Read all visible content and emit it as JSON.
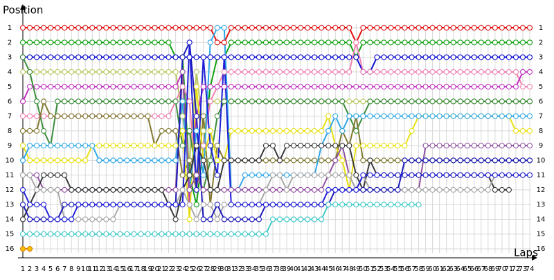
{
  "chart_data": {
    "type": "line",
    "y_label": "Position",
    "x_label": "Laps",
    "x": [
      1,
      2,
      3,
      4,
      5,
      6,
      7,
      8,
      9,
      10,
      11,
      12,
      13,
      14,
      15,
      16,
      17,
      18,
      19,
      20,
      21,
      22,
      23,
      24,
      25,
      26,
      27,
      28,
      29,
      30,
      31,
      32,
      33,
      34,
      35,
      36,
      37,
      38,
      39,
      40,
      41,
      42,
      43,
      44,
      45,
      46,
      47,
      48,
      49,
      50,
      51,
      52,
      53,
      54,
      55,
      56,
      57,
      58,
      59,
      60,
      61,
      62,
      63,
      64,
      65,
      66,
      67,
      68,
      69,
      70,
      71,
      72,
      73,
      74
    ],
    "xlim": [
      1,
      74
    ],
    "ylim": [
      1,
      16
    ],
    "y_inverted": true,
    "yticks": [
      1,
      2,
      3,
      4,
      5,
      6,
      7,
      8,
      9,
      10,
      11,
      12,
      13,
      14,
      15,
      16
    ],
    "grid": true,
    "series": [
      {
        "color": "#e01010",
        "values": [
          1,
          1,
          1,
          1,
          1,
          1,
          1,
          1,
          1,
          1,
          1,
          1,
          1,
          1,
          1,
          1,
          1,
          1,
          1,
          1,
          1,
          1,
          1,
          1,
          1,
          1,
          1,
          1,
          2,
          2,
          1,
          1,
          1,
          1,
          1,
          1,
          1,
          1,
          1,
          1,
          1,
          1,
          1,
          1,
          1,
          1,
          1,
          1,
          2,
          1,
          1,
          1,
          1,
          1,
          1,
          1,
          1,
          1,
          1,
          1,
          1,
          1,
          1,
          1,
          1,
          1,
          1,
          1,
          1,
          1,
          1,
          1,
          1,
          1
        ]
      },
      {
        "color": "#10a010",
        "values": [
          2,
          2,
          2,
          2,
          2,
          2,
          2,
          2,
          2,
          2,
          2,
          2,
          2,
          2,
          2,
          2,
          2,
          2,
          2,
          2,
          2,
          2,
          3,
          3,
          11,
          13,
          9,
          5,
          3,
          3,
          2,
          2,
          2,
          2,
          2,
          2,
          2,
          2,
          2,
          2,
          2,
          2,
          2,
          2,
          2,
          2,
          2,
          2,
          3,
          2,
          2,
          2,
          2,
          2,
          2,
          2,
          2,
          2,
          2,
          2,
          2,
          2,
          2,
          2,
          2,
          2,
          2,
          2,
          2,
          2,
          2,
          2,
          2,
          2
        ]
      },
      {
        "color": "#0a0ad0",
        "values": [
          3,
          3,
          3,
          3,
          3,
          3,
          3,
          3,
          3,
          3,
          3,
          3,
          3,
          3,
          3,
          3,
          3,
          3,
          3,
          3,
          3,
          3,
          3,
          3,
          3,
          3,
          3,
          3,
          3,
          3,
          3,
          3,
          3,
          3,
          3,
          3,
          3,
          3,
          3,
          3,
          3,
          3,
          3,
          3,
          3,
          3,
          3,
          3,
          3,
          4,
          4,
          3,
          3,
          3,
          3,
          3,
          3,
          3,
          3,
          3,
          3,
          3,
          3,
          3,
          3,
          3,
          3,
          3,
          3,
          3,
          3,
          3,
          3,
          3
        ]
      },
      {
        "color": "#b8c860",
        "values": [
          4,
          4,
          4,
          4,
          4,
          4,
          4,
          4,
          4,
          4,
          4,
          4,
          4,
          4,
          4,
          4,
          4,
          4,
          4,
          4,
          4,
          4,
          4,
          7,
          10,
          4,
          8,
          6,
          6,
          6,
          6,
          6,
          6,
          6,
          6,
          6,
          6,
          6,
          6,
          6,
          6,
          6,
          6,
          6,
          6,
          6,
          6,
          6,
          6,
          6,
          6,
          6,
          6,
          6,
          6,
          6,
          6,
          6,
          6,
          6,
          6,
          6,
          6,
          6,
          6,
          6,
          6,
          6,
          6,
          6,
          6,
          6,
          6,
          6
        ]
      },
      {
        "color": "#f080b0",
        "values": [
          7,
          7,
          7,
          7,
          7,
          7,
          7,
          7,
          7,
          7,
          7,
          7,
          7,
          7,
          7,
          7,
          7,
          7,
          7,
          7,
          7,
          7,
          6,
          5,
          6,
          12,
          9,
          6,
          5,
          4,
          4,
          4,
          4,
          4,
          4,
          4,
          4,
          4,
          4,
          4,
          4,
          4,
          4,
          4,
          4,
          4,
          4,
          4,
          2,
          4,
          4,
          4,
          4,
          4,
          4,
          4,
          4,
          4,
          4,
          4,
          4,
          4,
          4,
          4,
          4,
          4,
          4,
          4,
          4,
          4,
          4,
          4,
          5,
          5
        ]
      },
      {
        "color": "#c030c0",
        "values": [
          6,
          5,
          5,
          5,
          5,
          5,
          5,
          5,
          5,
          5,
          5,
          5,
          5,
          5,
          5,
          5,
          5,
          5,
          5,
          5,
          5,
          5,
          5,
          4,
          13,
          7,
          5,
          5,
          5,
          5,
          5,
          5,
          5,
          5,
          5,
          5,
          5,
          5,
          5,
          5,
          5,
          5,
          5,
          5,
          5,
          5,
          5,
          5,
          5,
          5,
          5,
          5,
          5,
          5,
          5,
          5,
          5,
          5,
          5,
          5,
          5,
          5,
          5,
          5,
          5,
          5,
          5,
          5,
          5,
          5,
          5,
          5,
          4,
          4
        ]
      },
      {
        "color": "#3c8c3c",
        "values": [
          3,
          4,
          6,
          8,
          9,
          6,
          6,
          6,
          6,
          6,
          6,
          6,
          6,
          6,
          6,
          6,
          6,
          6,
          6,
          6,
          6,
          6,
          6,
          9,
          8,
          11,
          12,
          10,
          7,
          6,
          6,
          6,
          6,
          6,
          6,
          6,
          6,
          6,
          6,
          6,
          6,
          6,
          6,
          6,
          6,
          6,
          6,
          7,
          8,
          7,
          6,
          6,
          6,
          6,
          6,
          6,
          6,
          6,
          6,
          6,
          6,
          6,
          6,
          6,
          6,
          6,
          6,
          6,
          6,
          6,
          6,
          6,
          6,
          6
        ]
      },
      {
        "color": "#807830",
        "values": [
          8,
          8,
          8,
          6,
          7,
          7,
          7,
          7,
          7,
          7,
          7,
          7,
          7,
          7,
          7,
          7,
          7,
          7,
          7,
          9,
          8,
          8,
          8,
          11,
          10,
          12,
          7,
          13,
          9,
          10,
          10,
          10,
          10,
          10,
          10,
          10,
          10,
          10,
          10,
          10,
          10,
          10,
          10,
          10,
          10,
          10,
          8,
          9,
          7,
          10,
          10,
          10,
          10,
          10,
          10,
          10,
          10,
          10,
          10,
          10,
          10,
          10,
          10,
          10,
          10,
          10,
          10,
          10,
          10,
          10,
          10,
          10,
          10,
          10
        ]
      },
      {
        "color": "#e8e010",
        "values": [
          9,
          10,
          10,
          10,
          10,
          10,
          10,
          10,
          10,
          10,
          9,
          9,
          9,
          9,
          9,
          9,
          9,
          9,
          9,
          9,
          9,
          9,
          9,
          8,
          14,
          5,
          10,
          8,
          10,
          10,
          8,
          8,
          8,
          8,
          8,
          8,
          8,
          8,
          8,
          8,
          8,
          8,
          8,
          8,
          7,
          9,
          10,
          12,
          9,
          9,
          9,
          9,
          9,
          9,
          9,
          9,
          8,
          7,
          7,
          7,
          7,
          7,
          7,
          7,
          7,
          7,
          7,
          7,
          7,
          7,
          7,
          8,
          8,
          8
        ]
      },
      {
        "color": "#30a8e8",
        "values": [
          10,
          9,
          9,
          9,
          9,
          9,
          9,
          9,
          9,
          9,
          9,
          10,
          10,
          10,
          10,
          10,
          10,
          10,
          10,
          10,
          10,
          10,
          10,
          6,
          12,
          8,
          11,
          2,
          1,
          1,
          12,
          12,
          11,
          11,
          11,
          11,
          11,
          11,
          11,
          11,
          11,
          11,
          11,
          9,
          8,
          7,
          8,
          7,
          7,
          7,
          7,
          7,
          7,
          7,
          7,
          7,
          7,
          7,
          7,
          7,
          7,
          7,
          7,
          7,
          7,
          7,
          7,
          7,
          7,
          7,
          7,
          7,
          7,
          7
        ]
      },
      {
        "color": "#9050a0",
        "values": [
          11,
          11,
          11,
          12,
          12,
          12,
          12,
          12,
          12,
          12,
          12,
          12,
          12,
          12,
          12,
          12,
          12,
          12,
          12,
          12,
          12,
          12,
          12,
          4,
          12,
          11,
          12,
          12,
          12,
          12,
          12,
          12,
          12,
          12,
          12,
          12,
          12,
          12,
          12,
          12,
          12,
          12,
          12,
          12,
          11,
          10,
          9,
          11,
          12,
          12,
          12,
          12,
          12,
          12,
          12,
          12,
          12,
          12,
          9,
          9,
          9,
          9,
          9,
          9,
          9,
          9,
          9,
          9,
          9,
          9,
          9,
          9,
          9,
          9
        ]
      },
      {
        "color": "#383838",
        "values": [
          14,
          13,
          12,
          11,
          11,
          11,
          11,
          12,
          12,
          12,
          12,
          12,
          12,
          12,
          12,
          12,
          12,
          12,
          12,
          12,
          12,
          13,
          14,
          12,
          11,
          9,
          10,
          12,
          12,
          10,
          10,
          10,
          10,
          10,
          10,
          9,
          9,
          10,
          9,
          9,
          9,
          9,
          9,
          9,
          9,
          9,
          9,
          9,
          11,
          12,
          10,
          11,
          11,
          11,
          11,
          11,
          11,
          11,
          11,
          11,
          11,
          11,
          11,
          11,
          11,
          11,
          11,
          11,
          12,
          12,
          12,
          null,
          null,
          null
        ]
      },
      {
        "color": "#a8a8a8",
        "values": [
          11,
          11,
          12,
          12,
          12,
          12,
          14,
          14,
          14,
          14,
          14,
          14,
          14,
          14,
          13,
          13,
          13,
          13,
          13,
          13,
          13,
          13,
          13,
          12,
          13,
          14,
          13,
          13,
          14,
          13,
          13,
          13,
          13,
          13,
          13,
          12,
          11,
          11,
          12,
          11,
          11,
          11,
          11,
          11,
          11,
          11,
          11,
          11,
          12,
          11,
          12,
          12,
          12,
          12,
          12,
          12,
          12,
          12,
          12,
          12,
          12,
          12,
          12,
          12,
          12,
          12,
          12,
          12,
          11,
          11,
          11,
          11,
          11,
          null
        ]
      },
      {
        "color": "#1a1ab8",
        "values": [
          13,
          14,
          14,
          14,
          14,
          14,
          13,
          13,
          13,
          13,
          13,
          13,
          13,
          13,
          13,
          13,
          13,
          13,
          13,
          13,
          13,
          13,
          13,
          3,
          2,
          7,
          14,
          14,
          13,
          14,
          14,
          14,
          14,
          14,
          14,
          13,
          13,
          13,
          13,
          13,
          13,
          13,
          13,
          13,
          13,
          12,
          12,
          12,
          12,
          12,
          12,
          12,
          12,
          12,
          12,
          10,
          10,
          10,
          10,
          10,
          10,
          10,
          10,
          10,
          10,
          10,
          10,
          10,
          10,
          10,
          10,
          10,
          10,
          10
        ]
      },
      {
        "color": "#40c8c8",
        "values": [
          15,
          15,
          15,
          15,
          15,
          15,
          15,
          15,
          15,
          15,
          15,
          15,
          15,
          15,
          15,
          15,
          15,
          15,
          15,
          15,
          15,
          15,
          15,
          15,
          15,
          15,
          15,
          15,
          15,
          15,
          15,
          15,
          15,
          15,
          15,
          15,
          14,
          14,
          14,
          14,
          14,
          14,
          14,
          14,
          13,
          13,
          13,
          13,
          13,
          13,
          13,
          13,
          13,
          13,
          13,
          13,
          13,
          13,
          null,
          null,
          null,
          null,
          null,
          null,
          null,
          null,
          null,
          null,
          null,
          null,
          null,
          null,
          null,
          null
        ]
      },
      {
        "color": "#e08000",
        "marker_fill": "#f0c000",
        "values": [
          16,
          16,
          null,
          null,
          null,
          null,
          null,
          null,
          null,
          null,
          null,
          null,
          null,
          null,
          null,
          null,
          null,
          null,
          null,
          null,
          null,
          null,
          null,
          null,
          null,
          null,
          null,
          null,
          null,
          null,
          null,
          null,
          null,
          null,
          null,
          null,
          null,
          null,
          null,
          null,
          null,
          null,
          null,
          null,
          null,
          null,
          null,
          null,
          null,
          null,
          null,
          null,
          null,
          null,
          null,
          null,
          null,
          null,
          null,
          null,
          null,
          null,
          null,
          null,
          null,
          null,
          null,
          null,
          null,
          null,
          null,
          null,
          null,
          null
        ]
      },
      {
        "color": "#2020d8",
        "values": [
          12,
          13,
          13,
          13,
          14,
          14,
          14,
          14,
          13,
          13,
          13,
          13,
          13,
          13,
          13,
          13,
          13,
          13,
          13,
          13,
          13,
          13,
          13,
          13,
          2,
          12,
          3,
          9,
          11,
          3,
          13,
          13,
          13,
          13,
          13,
          13,
          13,
          13,
          13,
          13,
          13,
          13,
          13,
          13,
          12,
          12,
          12,
          12,
          12,
          11,
          11,
          11,
          11,
          11,
          11,
          11,
          11,
          11,
          11,
          11,
          11,
          11,
          11,
          11,
          11,
          11,
          11,
          11,
          11,
          11,
          11,
          11,
          11,
          11
        ]
      }
    ]
  }
}
